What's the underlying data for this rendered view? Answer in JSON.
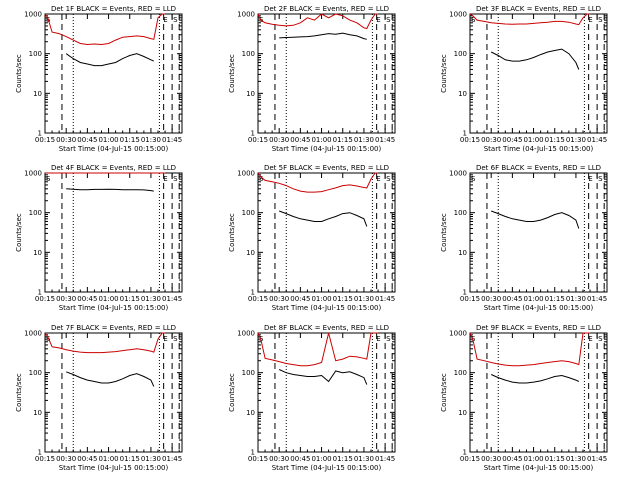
{
  "x_tick_labels": [
    "00:15",
    "00:30",
    "00:45",
    "01:00",
    "01:15",
    "01:30",
    "01:45"
  ],
  "y_tick_labels": [
    "1",
    "10",
    "100",
    "1000"
  ],
  "ylabel": "Counts/sec",
  "xlabel": "Start Time (04-Jul-15 00:15:00)",
  "colors": {
    "events": "#000000",
    "lld": "#cc0000"
  },
  "chart_data": [
    {
      "type": "line",
      "title": "Det 1F BLACK = Events, RED = LLD",
      "xlabel": "Start Time (04-Jul-15 00:15:00)",
      "ylabel": "Counts/sec",
      "ylim": [
        1,
        1000
      ],
      "yscale": "log",
      "x_range": [
        "00:15",
        "01:52"
      ],
      "x": [
        "00:15",
        "00:17",
        "00:20",
        "00:25",
        "00:30",
        "00:35",
        "00:40",
        "00:45",
        "00:50",
        "00:55",
        "01:00",
        "01:05",
        "01:10",
        "01:15",
        "01:20",
        "01:25",
        "01:30",
        "01:32",
        "01:35",
        "01:38",
        "01:40"
      ],
      "series": [
        {
          "name": "Events",
          "values": [
            null,
            null,
            null,
            null,
            100,
            75,
            60,
            55,
            50,
            50,
            55,
            60,
            75,
            90,
            100,
            85,
            70,
            65,
            null,
            null,
            null
          ]
        },
        {
          "name": "LLD",
          "values": [
            1000,
            800,
            350,
            320,
            270,
            220,
            180,
            170,
            175,
            170,
            180,
            220,
            260,
            270,
            280,
            270,
            240,
            230,
            800,
            1000,
            1000
          ]
        }
      ],
      "annotations": [
        "S",
        "E",
        "S"
      ]
    },
    {
      "type": "line",
      "title": "Det 2F BLACK = Events, RED = LLD",
      "xlabel": "Start Time (04-Jul-15 00:15:00)",
      "ylabel": "Counts/sec",
      "ylim": [
        1,
        1000
      ],
      "yscale": "log",
      "x_range": [
        "00:15",
        "01:52"
      ],
      "x": [
        "00:15",
        "00:17",
        "00:20",
        "00:25",
        "00:30",
        "00:35",
        "00:40",
        "00:45",
        "00:50",
        "00:55",
        "01:00",
        "01:05",
        "01:10",
        "01:15",
        "01:20",
        "01:25",
        "01:30",
        "01:32",
        "01:35",
        "01:38",
        "01:40"
      ],
      "series": [
        {
          "name": "Events",
          "values": [
            null,
            null,
            null,
            null,
            250,
            255,
            260,
            265,
            270,
            280,
            300,
            320,
            310,
            330,
            300,
            280,
            240,
            230,
            null,
            null,
            null
          ]
        },
        {
          "name": "LLD",
          "values": [
            1000,
            700,
            600,
            550,
            520,
            500,
            520,
            600,
            800,
            700,
            1100,
            800,
            1200,
            900,
            700,
            600,
            450,
            430,
            700,
            1000,
            1000
          ]
        }
      ],
      "annotations": [
        "S",
        "E",
        "S"
      ]
    },
    {
      "type": "line",
      "title": "Det 3F BLACK = Events, RED = LLD",
      "xlabel": "Start Time (04-Jul-15 00:15:00)",
      "ylabel": "Counts/sec",
      "ylim": [
        1,
        1000
      ],
      "yscale": "log",
      "x_range": [
        "00:15",
        "01:52"
      ],
      "x": [
        "00:15",
        "00:17",
        "00:20",
        "00:25",
        "00:30",
        "00:35",
        "00:40",
        "00:45",
        "00:50",
        "00:55",
        "01:00",
        "01:05",
        "01:10",
        "01:15",
        "01:20",
        "01:25",
        "01:30",
        "01:32",
        "01:35",
        "01:38",
        "01:40"
      ],
      "series": [
        {
          "name": "Events",
          "values": [
            null,
            null,
            null,
            null,
            110,
            90,
            70,
            65,
            65,
            70,
            80,
            95,
            110,
            120,
            130,
            100,
            60,
            40,
            null,
            null,
            null
          ]
        },
        {
          "name": "LLD",
          "values": [
            1000,
            900,
            700,
            650,
            600,
            580,
            560,
            550,
            560,
            560,
            580,
            600,
            620,
            650,
            650,
            620,
            560,
            540,
            800,
            1000,
            1000
          ]
        }
      ],
      "annotations": [
        "S",
        "E",
        "S"
      ]
    },
    {
      "type": "line",
      "title": "Det 4F BLACK = Events, RED = LLD",
      "xlabel": "Start Time (04-Jul-15 00:15:00)",
      "ylabel": "Counts/sec",
      "ylim": [
        1,
        1000
      ],
      "yscale": "log",
      "x_range": [
        "00:15",
        "01:52"
      ],
      "x": [
        "00:15",
        "00:17",
        "00:20",
        "00:25",
        "00:30",
        "00:35",
        "00:40",
        "00:45",
        "00:50",
        "00:55",
        "01:00",
        "01:05",
        "01:10",
        "01:15",
        "01:20",
        "01:25",
        "01:30",
        "01:32",
        "01:35",
        "01:38",
        "01:40"
      ],
      "series": [
        {
          "name": "Events",
          "values": [
            null,
            null,
            null,
            null,
            400,
            390,
            380,
            380,
            385,
            385,
            390,
            385,
            380,
            380,
            380,
            375,
            360,
            350,
            null,
            null,
            null
          ]
        },
        {
          "name": "LLD",
          "values": [
            1000,
            1000,
            1200,
            1150,
            1100,
            1100,
            1100,
            1100,
            1100,
            1100,
            1100,
            1100,
            1100,
            1100,
            1100,
            1100,
            1050,
            1050,
            1200,
            1000,
            1000
          ]
        }
      ],
      "annotations": [
        "S",
        "E",
        "S"
      ]
    },
    {
      "type": "line",
      "title": "Det 5F BLACK = Events, RED = LLD",
      "xlabel": "Start Time (04-Jul-15 00:15:00)",
      "ylabel": "Counts/sec",
      "ylim": [
        1,
        1000
      ],
      "yscale": "log",
      "x_range": [
        "00:15",
        "01:52"
      ],
      "x": [
        "00:15",
        "00:17",
        "00:20",
        "00:25",
        "00:30",
        "00:35",
        "00:40",
        "00:45",
        "00:50",
        "00:55",
        "01:00",
        "01:05",
        "01:10",
        "01:15",
        "01:20",
        "01:25",
        "01:30",
        "01:32",
        "01:35",
        "01:38",
        "01:40"
      ],
      "series": [
        {
          "name": "Events",
          "values": [
            null,
            null,
            null,
            null,
            110,
            95,
            80,
            70,
            65,
            60,
            60,
            70,
            80,
            95,
            100,
            85,
            70,
            45,
            null,
            null,
            null
          ]
        },
        {
          "name": "LLD",
          "values": [
            1000,
            800,
            650,
            600,
            550,
            480,
            400,
            350,
            330,
            330,
            340,
            380,
            420,
            480,
            500,
            470,
            430,
            420,
            700,
            1000,
            1000
          ]
        }
      ],
      "annotations": [
        "S",
        "E",
        "S"
      ]
    },
    {
      "type": "line",
      "title": "Det 6F BLACK = Events, RED = LLD",
      "xlabel": "Start Time (04-Jul-15 00:15:00)",
      "ylabel": "Counts/sec",
      "ylim": [
        1,
        1000
      ],
      "yscale": "log",
      "x_range": [
        "00:15",
        "01:52"
      ],
      "x": [
        "00:15",
        "00:17",
        "00:20",
        "00:25",
        "00:30",
        "00:35",
        "00:40",
        "00:45",
        "00:50",
        "00:55",
        "01:00",
        "01:05",
        "01:10",
        "01:15",
        "01:20",
        "01:25",
        "01:30",
        "01:32",
        "01:35",
        "01:38",
        "01:40"
      ],
      "series": [
        {
          "name": "Events",
          "values": [
            null,
            null,
            null,
            null,
            110,
            95,
            80,
            70,
            65,
            60,
            60,
            65,
            75,
            90,
            100,
            85,
            65,
            40,
            null,
            null,
            null
          ]
        }
      ],
      "annotations": [
        "S",
        "E",
        "S"
      ]
    },
    {
      "type": "line",
      "title": "Det 7F BLACK = Events, RED = LLD",
      "xlabel": "Start Time (04-Jul-15 00:15:00)",
      "ylabel": "Counts/sec",
      "ylim": [
        1,
        1000
      ],
      "yscale": "log",
      "x_range": [
        "00:15",
        "01:52"
      ],
      "x": [
        "00:15",
        "00:17",
        "00:20",
        "00:25",
        "00:30",
        "00:35",
        "00:40",
        "00:45",
        "00:50",
        "00:55",
        "01:00",
        "01:05",
        "01:10",
        "01:15",
        "01:20",
        "01:25",
        "01:30",
        "01:32",
        "01:35",
        "01:38",
        "01:40"
      ],
      "series": [
        {
          "name": "Events",
          "values": [
            null,
            null,
            null,
            null,
            105,
            90,
            75,
            65,
            60,
            55,
            55,
            60,
            70,
            85,
            95,
            80,
            65,
            45,
            null,
            null,
            null
          ]
        },
        {
          "name": "LLD",
          "values": [
            1000,
            800,
            450,
            420,
            380,
            350,
            330,
            320,
            320,
            320,
            330,
            340,
            360,
            380,
            400,
            380,
            350,
            330,
            700,
            1000,
            1000
          ]
        }
      ],
      "annotations": [
        "S",
        "E",
        "S"
      ]
    },
    {
      "type": "line",
      "title": "Det 8F BLACK = Events, RED = LLD",
      "xlabel": "Start Time (04-Jul-15 00:15:00)",
      "ylabel": "Counts/sec",
      "ylim": [
        1,
        1000
      ],
      "yscale": "log",
      "x_range": [
        "00:15",
        "01:52"
      ],
      "x": [
        "00:15",
        "00:17",
        "00:20",
        "00:25",
        "00:30",
        "00:35",
        "00:40",
        "00:45",
        "00:50",
        "00:55",
        "01:00",
        "01:05",
        "01:10",
        "01:15",
        "01:20",
        "01:25",
        "01:30",
        "01:32",
        "01:35",
        "01:38",
        "01:40"
      ],
      "series": [
        {
          "name": "Events",
          "values": [
            null,
            null,
            null,
            null,
            120,
            100,
            90,
            85,
            80,
            80,
            85,
            60,
            110,
            100,
            105,
            90,
            75,
            50,
            null,
            null,
            null
          ]
        },
        {
          "name": "LLD",
          "values": [
            1000,
            700,
            230,
            210,
            190,
            170,
            160,
            150,
            150,
            160,
            180,
            1000,
            200,
            220,
            260,
            250,
            230,
            220,
            1000,
            1000,
            1000
          ]
        }
      ],
      "annotations": [
        "S",
        "E",
        "S"
      ]
    },
    {
      "type": "line",
      "title": "Det 9F BLACK = Events, RED = LLD",
      "xlabel": "Start Time (04-Jul-15 00:15:00)",
      "ylabel": "Counts/sec",
      "ylim": [
        1,
        1000
      ],
      "yscale": "log",
      "x_range": [
        "00:15",
        "01:52"
      ],
      "x": [
        "00:15",
        "00:17",
        "00:20",
        "00:25",
        "00:30",
        "00:35",
        "00:40",
        "00:45",
        "00:50",
        "00:55",
        "01:00",
        "01:05",
        "01:10",
        "01:15",
        "01:20",
        "01:25",
        "01:30",
        "01:32",
        "01:35",
        "01:38",
        "01:40"
      ],
      "series": [
        {
          "name": "Events",
          "values": [
            null,
            null,
            null,
            null,
            90,
            75,
            65,
            58,
            55,
            55,
            58,
            62,
            70,
            80,
            85,
            75,
            65,
            60,
            null,
            null,
            null
          ]
        },
        {
          "name": "LLD",
          "values": [
            1000,
            700,
            220,
            200,
            180,
            165,
            155,
            150,
            150,
            155,
            160,
            170,
            180,
            190,
            200,
            190,
            170,
            160,
            1000,
            1000,
            1000
          ]
        }
      ],
      "annotations": [
        "S",
        "E",
        "S"
      ]
    }
  ]
}
